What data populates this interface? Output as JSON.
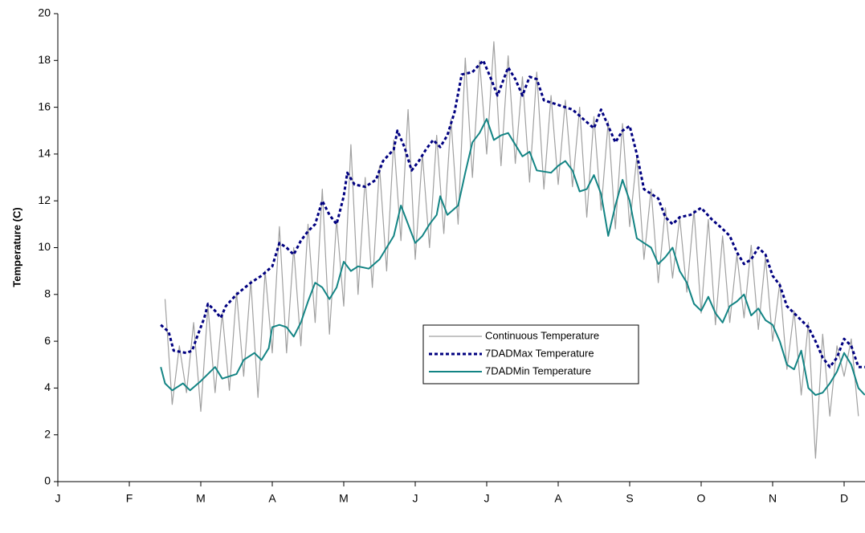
{
  "chart_data": {
    "type": "line",
    "y_label": "Temperature (C)",
    "xlim": [
      0,
      11.29
    ],
    "xticks": [
      {
        "value": 0,
        "label": "J"
      },
      {
        "value": 1,
        "label": "F"
      },
      {
        "value": 2,
        "label": "M"
      },
      {
        "value": 3,
        "label": "A"
      },
      {
        "value": 4,
        "label": "M"
      },
      {
        "value": 5,
        "label": "J"
      },
      {
        "value": 6,
        "label": "J"
      },
      {
        "value": 7,
        "label": "A"
      },
      {
        "value": 8,
        "label": "S"
      },
      {
        "value": 9,
        "label": "O"
      },
      {
        "value": 10,
        "label": "N"
      },
      {
        "value": 11,
        "label": "D"
      }
    ],
    "ylim": [
      0,
      20
    ],
    "yticks": [
      0,
      2,
      4,
      6,
      8,
      10,
      12,
      14,
      16,
      18,
      20
    ],
    "grid": false,
    "series": [
      {
        "name": "Continuous Temperature",
        "color": "#a0a0a0",
        "line_style": "solid",
        "width": 1.2,
        "x": [
          1.5,
          1.6,
          1.7,
          1.8,
          1.9,
          2.0,
          2.1,
          2.2,
          2.3,
          2.4,
          2.5,
          2.6,
          2.7,
          2.8,
          2.9,
          3.0,
          3.1,
          3.2,
          3.3,
          3.4,
          3.5,
          3.6,
          3.7,
          3.8,
          3.9,
          4.0,
          4.1,
          4.2,
          4.3,
          4.4,
          4.5,
          4.6,
          4.7,
          4.8,
          4.9,
          5.0,
          5.1,
          5.2,
          5.3,
          5.4,
          5.5,
          5.6,
          5.7,
          5.8,
          5.9,
          6.0,
          6.1,
          6.2,
          6.3,
          6.4,
          6.5,
          6.6,
          6.7,
          6.8,
          6.9,
          7.0,
          7.1,
          7.2,
          7.3,
          7.4,
          7.5,
          7.6,
          7.7,
          7.8,
          7.9,
          8.0,
          8.1,
          8.2,
          8.3,
          8.4,
          8.5,
          8.6,
          8.7,
          8.8,
          8.9,
          9.0,
          9.1,
          9.2,
          9.3,
          9.4,
          9.5,
          9.6,
          9.7,
          9.8,
          9.9,
          10.0,
          10.1,
          10.2,
          10.3,
          10.4,
          10.5,
          10.6,
          10.7,
          10.8,
          10.9,
          11.0,
          11.1,
          11.2
        ],
        "values": [
          7.8,
          3.3,
          5.8,
          3.8,
          6.8,
          3.0,
          7.5,
          3.8,
          7.2,
          3.9,
          8.1,
          4.5,
          8.6,
          3.6,
          9.0,
          5.5,
          10.9,
          5.5,
          10.0,
          5.8,
          11.0,
          6.8,
          12.5,
          6.3,
          11.2,
          7.5,
          14.4,
          8.0,
          13.0,
          8.3,
          13.5,
          9.0,
          14.6,
          10.3,
          15.9,
          9.5,
          14.0,
          10.0,
          14.8,
          10.6,
          15.5,
          11.0,
          18.1,
          13.0,
          18.0,
          14.0,
          18.8,
          13.5,
          18.2,
          13.6,
          17.3,
          12.8,
          17.5,
          12.5,
          16.5,
          12.7,
          16.3,
          12.6,
          16.0,
          11.3,
          15.6,
          11.6,
          15.4,
          10.8,
          15.3,
          10.9,
          13.9,
          9.5,
          12.5,
          8.5,
          11.7,
          8.7,
          11.3,
          8.1,
          11.6,
          7.2,
          11.2,
          6.7,
          10.5,
          6.8,
          9.7,
          7.0,
          10.1,
          6.5,
          9.6,
          6.0,
          8.5,
          4.8,
          7.3,
          3.7,
          6.8,
          1.0,
          6.3,
          2.8,
          5.8,
          4.5,
          6.1,
          2.8
        ]
      },
      {
        "name": "7DADMax Temperature",
        "color": "#000080",
        "line_style": "dotted",
        "width": 3,
        "x": [
          1.44,
          1.55,
          1.62,
          1.8,
          1.88,
          1.95,
          2.05,
          2.1,
          2.2,
          2.28,
          2.35,
          2.5,
          2.7,
          2.85,
          3.0,
          3.1,
          3.2,
          3.3,
          3.4,
          3.5,
          3.6,
          3.7,
          3.8,
          3.9,
          4.0,
          4.05,
          4.15,
          4.3,
          4.45,
          4.55,
          4.7,
          4.75,
          4.85,
          4.95,
          5.05,
          5.15,
          5.25,
          5.35,
          5.45,
          5.55,
          5.65,
          5.8,
          5.95,
          6.05,
          6.15,
          6.3,
          6.4,
          6.5,
          6.6,
          6.7,
          6.8,
          7.0,
          7.2,
          7.35,
          7.5,
          7.6,
          7.7,
          7.8,
          7.9,
          8.0,
          8.1,
          8.2,
          8.4,
          8.5,
          8.6,
          8.7,
          8.85,
          9.0,
          9.15,
          9.3,
          9.4,
          9.5,
          9.6,
          9.7,
          9.8,
          9.9,
          10.0,
          10.1,
          10.2,
          10.3,
          10.4,
          10.5,
          10.6,
          10.7,
          10.8,
          10.9,
          11.0,
          11.1,
          11.2,
          11.29
        ],
        "values": [
          6.7,
          6.4,
          5.6,
          5.5,
          5.6,
          6.2,
          7.0,
          7.6,
          7.3,
          7.0,
          7.5,
          8.0,
          8.5,
          8.8,
          9.2,
          10.2,
          10.0,
          9.7,
          10.3,
          10.7,
          11.0,
          12.0,
          11.4,
          11.0,
          12.2,
          13.2,
          12.7,
          12.6,
          12.9,
          13.7,
          14.2,
          15.0,
          14.3,
          13.3,
          13.7,
          14.2,
          14.6,
          14.3,
          14.8,
          15.8,
          17.4,
          17.5,
          18.0,
          17.3,
          16.5,
          17.7,
          17.2,
          16.5,
          17.3,
          17.2,
          16.3,
          16.1,
          15.9,
          15.5,
          15.1,
          15.9,
          15.2,
          14.5,
          15.0,
          15.2,
          14.0,
          12.5,
          12.1,
          11.3,
          11.0,
          11.3,
          11.4,
          11.7,
          11.2,
          10.8,
          10.5,
          9.8,
          9.3,
          9.5,
          10.0,
          9.7,
          8.8,
          8.4,
          7.5,
          7.2,
          6.9,
          6.6,
          6.0,
          5.3,
          4.9,
          5.3,
          6.1,
          5.8,
          4.9,
          4.9
        ]
      },
      {
        "name": "7DADMin Temperature",
        "color": "#138484",
        "line_style": "solid",
        "width": 2,
        "x": [
          1.44,
          1.5,
          1.6,
          1.75,
          1.85,
          2.0,
          2.1,
          2.2,
          2.3,
          2.5,
          2.6,
          2.75,
          2.85,
          2.95,
          3.0,
          3.1,
          3.2,
          3.3,
          3.4,
          3.5,
          3.6,
          3.7,
          3.8,
          3.9,
          4.0,
          4.1,
          4.2,
          4.35,
          4.5,
          4.6,
          4.7,
          4.8,
          4.9,
          5.0,
          5.1,
          5.2,
          5.3,
          5.35,
          5.45,
          5.6,
          5.7,
          5.8,
          5.9,
          6.0,
          6.1,
          6.2,
          6.3,
          6.4,
          6.5,
          6.6,
          6.7,
          6.9,
          7.0,
          7.1,
          7.2,
          7.3,
          7.4,
          7.5,
          7.6,
          7.7,
          7.8,
          7.9,
          8.0,
          8.1,
          8.2,
          8.3,
          8.4,
          8.5,
          8.6,
          8.7,
          8.8,
          8.9,
          9.0,
          9.1,
          9.2,
          9.3,
          9.4,
          9.5,
          9.6,
          9.7,
          9.8,
          9.9,
          10.0,
          10.1,
          10.2,
          10.3,
          10.4,
          10.5,
          10.6,
          10.7,
          10.8,
          10.9,
          11.0,
          11.1,
          11.2,
          11.29
        ],
        "values": [
          4.9,
          4.2,
          3.9,
          4.2,
          3.9,
          4.3,
          4.6,
          4.9,
          4.4,
          4.6,
          5.2,
          5.5,
          5.2,
          5.7,
          6.6,
          6.7,
          6.6,
          6.2,
          6.8,
          7.7,
          8.5,
          8.3,
          7.8,
          8.3,
          9.4,
          9.0,
          9.2,
          9.1,
          9.5,
          10.0,
          10.5,
          11.8,
          11.0,
          10.2,
          10.5,
          11.0,
          11.4,
          12.2,
          11.4,
          11.8,
          13.2,
          14.5,
          14.9,
          15.5,
          14.6,
          14.8,
          14.9,
          14.4,
          13.9,
          14.1,
          13.3,
          13.2,
          13.5,
          13.7,
          13.3,
          12.4,
          12.5,
          13.1,
          12.3,
          10.5,
          11.8,
          12.9,
          12.0,
          10.4,
          10.2,
          10.0,
          9.3,
          9.6,
          10.0,
          9.0,
          8.5,
          7.6,
          7.3,
          7.9,
          7.2,
          6.8,
          7.5,
          7.7,
          8.0,
          7.1,
          7.4,
          6.9,
          6.7,
          6.0,
          5.0,
          4.8,
          5.6,
          4.0,
          3.7,
          3.8,
          4.2,
          4.7,
          5.5,
          5.0,
          4.0,
          3.7
        ]
      }
    ]
  }
}
